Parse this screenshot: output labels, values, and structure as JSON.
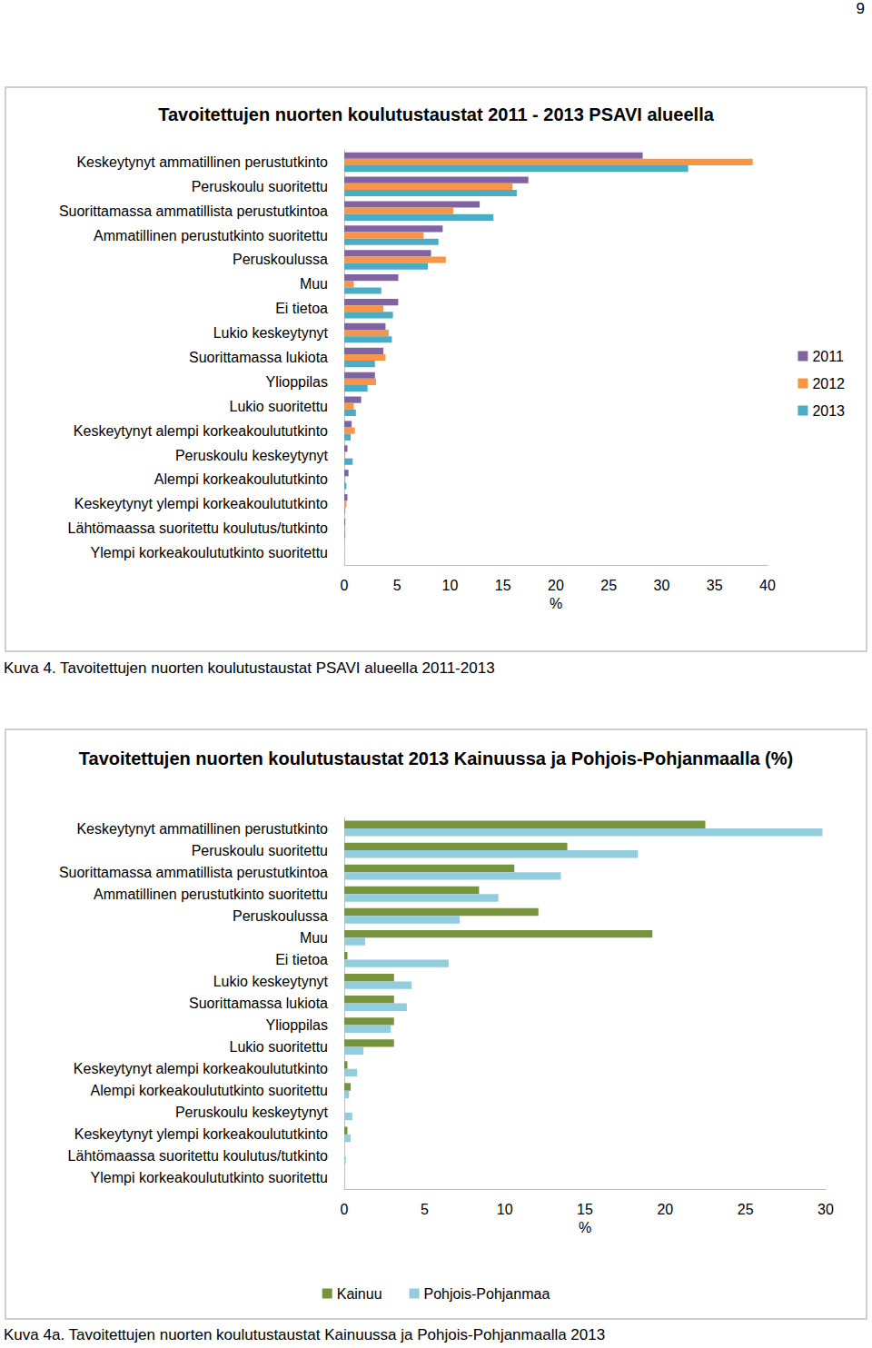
{
  "page": {
    "number": "9",
    "captions": [
      "Kuva 4. Tavoitettujen nuorten koulutustaustat PSAVI alueella 2011-2013",
      "Kuva 4a. Tavoitettujen nuorten koulutustaustat Kainuussa ja Pohjois-Pohjanmaalla 2013"
    ]
  },
  "chart_data": [
    {
      "type": "bar",
      "orientation": "horizontal",
      "title": "Tavoitettujen nuorten koulutustaustat 2011 - 2013 PSAVI alueella",
      "x_label": "%",
      "categories": [
        "Keskeytynyt ammatillinen perustutkinto",
        "Peruskoulu suoritettu",
        "Suorittamassa ammatillista perustutkintoa",
        "Ammatillinen perustutkinto suoritettu",
        "Peruskoulussa",
        "Muu",
        "Ei tietoa",
        "Lukio keskeytynyt",
        "Suorittamassa lukiota",
        "Ylioppilas",
        "Lukio suoritettu",
        "Keskeytynyt alempi korkeakoulututkinto",
        "Peruskoulu keskeytynyt",
        "Alempi korkeakoulututkinto",
        "Keskeytynyt ylempi korkeakoulututkinto",
        "Lähtömaassa suoritettu koulutus/tutkinto",
        "Ylempi korkeakoulututkinto suoritettu"
      ],
      "series": [
        {
          "name": "2011",
          "color": "#8064a2",
          "values": [
            28.2,
            17.4,
            12.8,
            9.3,
            8.2,
            5.1,
            5.1,
            3.9,
            3.7,
            2.9,
            1.6,
            0.7,
            0.3,
            0.4,
            0.3,
            0.1,
            0
          ]
        },
        {
          "name": "2012",
          "color": "#f79646",
          "values": [
            38.6,
            15.9,
            10.3,
            7.5,
            9.6,
            0.9,
            3.7,
            4.2,
            3.9,
            3.0,
            0.9,
            1.0,
            0.1,
            0.1,
            0.2,
            0.1,
            0
          ]
        },
        {
          "name": "2013",
          "color": "#4bacc6",
          "values": [
            32.5,
            16.3,
            14.1,
            8.9,
            7.9,
            3.5,
            4.6,
            4.5,
            2.9,
            2.2,
            1.1,
            0.6,
            0.8,
            0.2,
            0.1,
            0.1,
            0
          ]
        }
      ],
      "xlim": [
        0,
        40
      ],
      "xticks": [
        0,
        5,
        10,
        15,
        20,
        25,
        30,
        35,
        40
      ],
      "grid": false,
      "legend": "right",
      "data_labels": false
    },
    {
      "type": "bar",
      "orientation": "horizontal",
      "title": "Tavoitettujen nuorten koulutustaustat 2013 Kainuussa ja Pohjois-Pohjanmaalla (%)",
      "x_label": "%",
      "categories": [
        "Keskeytynyt ammatillinen perustutkinto",
        "Peruskoulu suoritettu",
        "Suorittamassa ammatillista perustutkintoa",
        "Ammatillinen perustutkinto suoritettu",
        "Peruskoulussa",
        "Muu",
        "Ei tietoa",
        "Lukio keskeytynyt",
        "Suorittamassa lukiota",
        "Ylioppilas",
        "Lukio suoritettu",
        "Keskeytynyt alempi korkeakoulututkinto",
        "Alempi korkeakoulututkinto suoritettu",
        "Peruskoulu keskeytynyt",
        "Keskeytynyt ylempi korkeakoulututkinto",
        "Lähtömaassa suoritettu koulutus/tutkinto",
        "Ylempi korkeakoulututkinto suoritettu"
      ],
      "series": [
        {
          "name": "Kainuu",
          "color": "#77933c",
          "values": [
            22.5,
            13.9,
            10.6,
            8.4,
            12.1,
            19.2,
            0.2,
            3.1,
            3.1,
            3.1,
            3.1,
            0.2,
            0.4,
            0,
            0.2,
            0,
            0
          ]
        },
        {
          "name": "Pohjois-Pohjanmaa",
          "color": "#93cddd",
          "values": [
            29.8,
            18.3,
            13.5,
            9.6,
            7.2,
            1.3,
            6.5,
            4.2,
            3.9,
            2.9,
            1.2,
            0.8,
            0.3,
            0.5,
            0.4,
            0.1,
            0
          ]
        }
      ],
      "xlim": [
        0,
        30
      ],
      "xticks": [
        0,
        5,
        10,
        15,
        20,
        25,
        30
      ],
      "grid": false,
      "legend": "bottom",
      "data_labels": false
    }
  ]
}
